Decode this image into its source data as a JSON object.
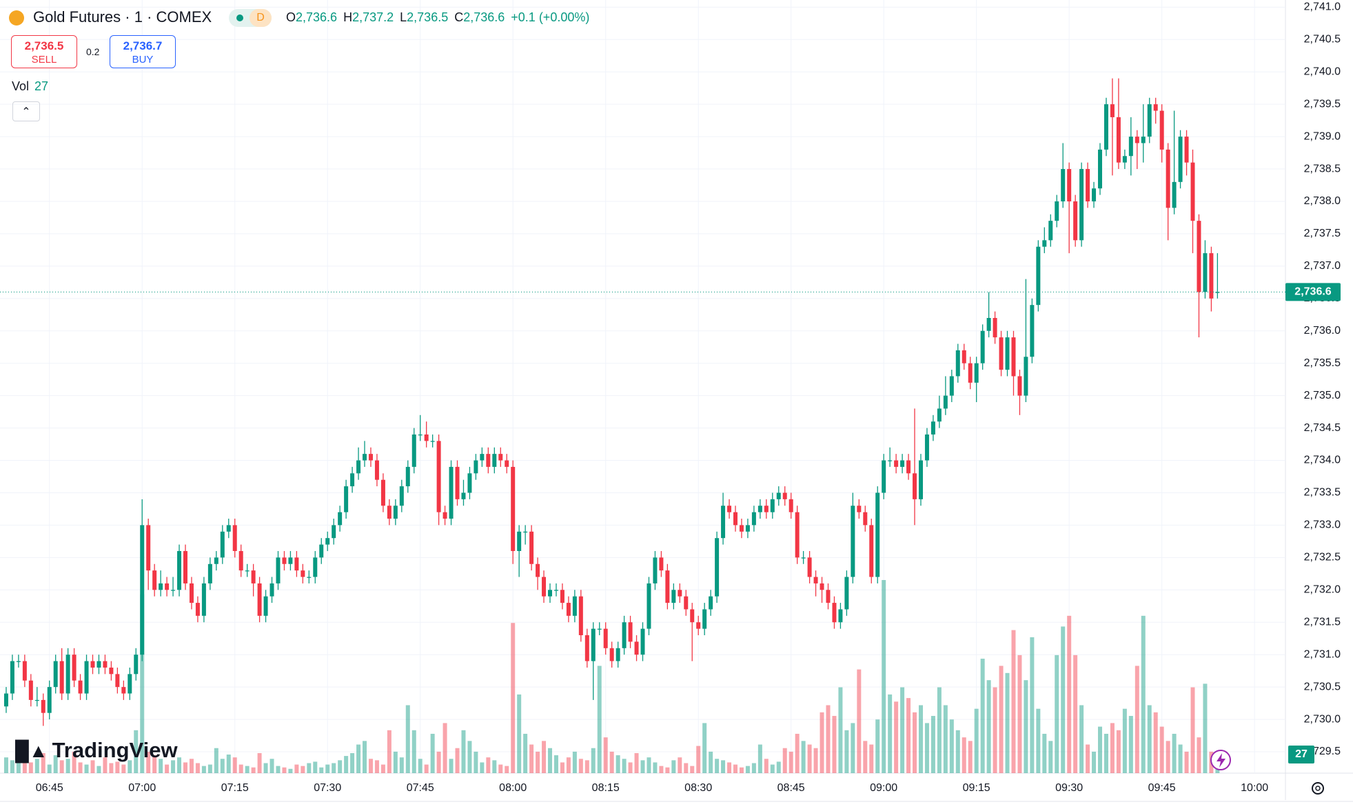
{
  "header": {
    "symbol": "Gold Futures · 1 · COMEX",
    "interval": "D",
    "ohlc": [
      {
        "label": "O",
        "value": "2,736.6"
      },
      {
        "label": "H",
        "value": "2,737.2"
      },
      {
        "label": "L",
        "value": "2,736.5"
      },
      {
        "label": "C",
        "value": "2,736.6"
      }
    ],
    "change": "+0.1 (+0.00%)",
    "sell": {
      "price": "2,736.5",
      "label": "SELL"
    },
    "spread": "0.2",
    "buy": {
      "price": "2,736.7",
      "label": "BUY"
    },
    "volume_label": "Vol",
    "logo": "TradingView"
  },
  "chart_data": {
    "type": "candlestick",
    "up_color": "#089981",
    "down_color": "#f23645",
    "grid": true,
    "xlim": [
      "06:37",
      "10:05"
    ],
    "xticks": [
      "06:45",
      "07:00",
      "07:15",
      "07:30",
      "07:45",
      "08:00",
      "08:15",
      "08:30",
      "08:45",
      "09:00",
      "09:15",
      "09:30",
      "09:45",
      "10:00"
    ],
    "ylim": [
      2729.17,
      2741.11
    ],
    "yticks": [
      {
        "value": 2729.5,
        "label": "2,729.5"
      },
      {
        "value": 2730.0,
        "label": "2,730.0"
      },
      {
        "value": 2730.5,
        "label": "2,730.5"
      },
      {
        "value": 2731.0,
        "label": "2,731.0"
      },
      {
        "value": 2731.5,
        "label": "2,731.5"
      },
      {
        "value": 2732.0,
        "label": "2,732.0"
      },
      {
        "value": 2732.5,
        "label": "2,732.5"
      },
      {
        "value": 2733.0,
        "label": "2,733.0"
      },
      {
        "value": 2733.5,
        "label": "2,733.5"
      },
      {
        "value": 2734.0,
        "label": "2,734.0"
      },
      {
        "value": 2734.5,
        "label": "2,734.5"
      },
      {
        "value": 2735.0,
        "label": "2,735.0"
      },
      {
        "value": 2735.5,
        "label": "2,735.5"
      },
      {
        "value": 2736.0,
        "label": "2,736.0"
      },
      {
        "value": 2736.5,
        "label": "2,736.5"
      },
      {
        "value": 2737.0,
        "label": "2,737.0"
      },
      {
        "value": 2737.5,
        "label": "2,737.5"
      },
      {
        "value": 2738.0,
        "label": "2,738.0"
      },
      {
        "value": 2738.5,
        "label": "2,738.5"
      },
      {
        "value": 2739.0,
        "label": "2,739.0"
      },
      {
        "value": 2739.5,
        "label": "2,739.5"
      },
      {
        "value": 2740.0,
        "label": "2,740.0"
      },
      {
        "value": 2740.5,
        "label": "2,740.5"
      },
      {
        "value": 2741.0,
        "label": "2,741.0"
      }
    ],
    "x": [
      "06:38",
      "06:39",
      "06:40",
      "06:41",
      "06:42",
      "06:43",
      "06:44",
      "06:45",
      "06:46",
      "06:47",
      "06:48",
      "06:49",
      "06:50",
      "06:51",
      "06:52",
      "06:53",
      "06:54",
      "06:55",
      "06:56",
      "06:57",
      "06:58",
      "06:59",
      "07:00",
      "07:01",
      "07:02",
      "07:03",
      "07:04",
      "07:05",
      "07:06",
      "07:07",
      "07:08",
      "07:09",
      "07:10",
      "07:11",
      "07:12",
      "07:13",
      "07:14",
      "07:15",
      "07:16",
      "07:17",
      "07:18",
      "07:19",
      "07:20",
      "07:21",
      "07:22",
      "07:23",
      "07:24",
      "07:25",
      "07:26",
      "07:27",
      "07:28",
      "07:29",
      "07:30",
      "07:31",
      "07:32",
      "07:33",
      "07:34",
      "07:35",
      "07:36",
      "07:37",
      "07:38",
      "07:39",
      "07:40",
      "07:41",
      "07:42",
      "07:43",
      "07:44",
      "07:45",
      "07:46",
      "07:47",
      "07:48",
      "07:49",
      "07:50",
      "07:51",
      "07:52",
      "07:53",
      "07:54",
      "07:55",
      "07:56",
      "07:57",
      "07:58",
      "07:59",
      "08:00",
      "08:01",
      "08:02",
      "08:03",
      "08:04",
      "08:05",
      "08:06",
      "08:07",
      "08:08",
      "08:09",
      "08:10",
      "08:11",
      "08:12",
      "08:13",
      "08:14",
      "08:15",
      "08:16",
      "08:17",
      "08:18",
      "08:19",
      "08:20",
      "08:21",
      "08:22",
      "08:23",
      "08:24",
      "08:25",
      "08:26",
      "08:27",
      "08:28",
      "08:29",
      "08:30",
      "08:31",
      "08:32",
      "08:33",
      "08:34",
      "08:35",
      "08:36",
      "08:37",
      "08:38",
      "08:39",
      "08:40",
      "08:41",
      "08:42",
      "08:43",
      "08:44",
      "08:45",
      "08:46",
      "08:47",
      "08:48",
      "08:49",
      "08:50",
      "08:51",
      "08:52",
      "08:53",
      "08:54",
      "08:55",
      "08:56",
      "08:57",
      "08:58",
      "08:59",
      "09:00",
      "09:01",
      "09:02",
      "09:03",
      "09:04",
      "09:05",
      "09:06",
      "09:07",
      "09:08",
      "09:09",
      "09:10",
      "09:11",
      "09:12",
      "09:13",
      "09:14",
      "09:15",
      "09:16",
      "09:17",
      "09:18",
      "09:19",
      "09:20",
      "09:21",
      "09:22",
      "09:23",
      "09:24",
      "09:25",
      "09:26",
      "09:27",
      "09:28",
      "09:29",
      "09:30",
      "09:31",
      "09:32",
      "09:33",
      "09:34",
      "09:35",
      "09:36",
      "09:37",
      "09:38",
      "09:39",
      "09:40",
      "09:41",
      "09:42",
      "09:43",
      "09:44",
      "09:45",
      "09:46",
      "09:47",
      "09:48",
      "09:49",
      "09:50",
      "09:51",
      "09:52",
      "09:53",
      "09:54"
    ],
    "open": [
      2730.2,
      2730.4,
      2730.9,
      2730.9,
      2730.6,
      2730.3,
      2730.3,
      2730.1,
      2730.5,
      2730.9,
      2730.4,
      2731.0,
      2730.6,
      2730.4,
      2730.9,
      2730.8,
      2730.9,
      2730.8,
      2730.7,
      2730.5,
      2730.4,
      2730.7,
      2731.0,
      2733.0,
      2732.3,
      2732.0,
      2732.1,
      2732.0,
      2732.0,
      2732.6,
      2732.1,
      2731.8,
      2731.6,
      2732.1,
      2732.4,
      2732.5,
      2732.9,
      2733.0,
      2732.6,
      2732.3,
      2732.3,
      2732.1,
      2731.6,
      2731.9,
      2732.1,
      2732.5,
      2732.4,
      2732.5,
      2732.3,
      2732.2,
      2732.2,
      2732.5,
      2732.7,
      2732.8,
      2733.0,
      2733.2,
      2733.6,
      2733.8,
      2734.0,
      2734.1,
      2734.0,
      2733.7,
      2733.3,
      2733.1,
      2733.3,
      2733.6,
      2733.9,
      2734.4,
      2734.4,
      2734.3,
      2734.3,
      2733.2,
      2733.1,
      2733.9,
      2733.4,
      2733.5,
      2733.8,
      2734.0,
      2734.1,
      2733.9,
      2734.1,
      2734.0,
      2733.9,
      2732.6,
      2732.9,
      2732.9,
      2732.4,
      2732.2,
      2731.9,
      2732.0,
      2732.0,
      2731.8,
      2731.6,
      2731.9,
      2731.3,
      2730.9,
      2731.4,
      2731.4,
      2731.1,
      2730.9,
      2731.1,
      2731.5,
      2731.2,
      2731.0,
      2731.4,
      2732.1,
      2732.5,
      2732.3,
      2731.8,
      2732.0,
      2731.9,
      2731.7,
      2731.5,
      2731.4,
      2731.7,
      2731.9,
      2732.8,
      2733.3,
      2733.2,
      2733.0,
      2732.9,
      2733.0,
      2733.2,
      2733.3,
      2733.2,
      2733.4,
      2733.5,
      2733.4,
      2733.2,
      2732.5,
      2732.5,
      2732.2,
      2732.1,
      2732.0,
      2731.8,
      2731.5,
      2731.7,
      2732.2,
      2733.3,
      2733.2,
      2733.0,
      2732.2,
      2733.5,
      2734.0,
      2734.0,
      2733.9,
      2734.0,
      2733.8,
      2733.4,
      2734.0,
      2734.4,
      2734.6,
      2734.8,
      2735.0,
      2735.3,
      2735.7,
      2735.5,
      2735.2,
      2735.5,
      2736.0,
      2736.2,
      2735.9,
      2735.4,
      2735.9,
      2735.3,
      2735.0,
      2735.6,
      2736.4,
      2737.3,
      2737.4,
      2737.7,
      2738.0,
      2738.5,
      2738.0,
      2737.4,
      2738.5,
      2738.0,
      2738.2,
      2738.8,
      2739.5,
      2739.3,
      2738.6,
      2738.7,
      2739.0,
      2738.9,
      2739.0,
      2739.5,
      2739.4,
      2738.8,
      2737.9,
      2738.3,
      2739.0,
      2738.6,
      2737.7,
      2736.6,
      2737.2,
      2736.6
    ],
    "high": [
      2730.5,
      2731.0,
      2731.0,
      2731.0,
      2730.7,
      2730.5,
      2730.4,
      2730.6,
      2731.0,
      2731.1,
      2731.1,
      2731.1,
      2730.7,
      2731.0,
      2731.0,
      2731.0,
      2731.0,
      2730.9,
      2730.8,
      2730.6,
      2730.8,
      2731.1,
      2733.4,
      2733.1,
      2732.4,
      2732.3,
      2732.2,
      2732.2,
      2732.7,
      2732.7,
      2732.2,
      2731.9,
      2732.2,
      2732.5,
      2732.6,
      2733.0,
      2733.1,
      2733.1,
      2732.7,
      2732.4,
      2732.4,
      2732.2,
      2732.0,
      2732.2,
      2732.6,
      2732.6,
      2732.6,
      2732.6,
      2732.4,
      2732.3,
      2732.6,
      2732.8,
      2732.9,
      2733.1,
      2733.3,
      2733.7,
      2733.9,
      2734.2,
      2734.3,
      2734.2,
      2734.1,
      2733.8,
      2733.4,
      2733.4,
      2733.7,
      2734.0,
      2734.5,
      2734.7,
      2734.6,
      2734.4,
      2734.4,
      2733.3,
      2734.0,
      2734.0,
      2733.7,
      2733.9,
      2734.1,
      2734.2,
      2734.2,
      2734.2,
      2734.2,
      2734.1,
      2734.0,
      2733.0,
      2733.0,
      2733.0,
      2732.5,
      2732.3,
      2732.1,
      2732.1,
      2732.1,
      2731.9,
      2732.0,
      2732.0,
      2731.4,
      2731.5,
      2731.5,
      2731.5,
      2731.2,
      2731.2,
      2731.6,
      2731.6,
      2731.3,
      2731.5,
      2732.2,
      2732.6,
      2732.6,
      2732.4,
      2732.1,
      2732.1,
      2732.0,
      2731.8,
      2731.6,
      2731.8,
      2732.0,
      2732.9,
      2733.5,
      2733.4,
      2733.3,
      2733.1,
      2733.1,
      2733.3,
      2733.4,
      2733.4,
      2733.5,
      2733.6,
      2733.6,
      2733.5,
      2733.3,
      2732.6,
      2732.6,
      2732.3,
      2732.2,
      2732.1,
      2731.9,
      2731.8,
      2732.3,
      2733.5,
      2733.4,
      2733.3,
      2733.1,
      2733.6,
      2734.1,
      2734.2,
      2734.1,
      2734.1,
      2734.1,
      2734.8,
      2734.1,
      2734.5,
      2734.7,
      2735.0,
      2735.3,
      2735.4,
      2735.8,
      2735.8,
      2735.6,
      2735.6,
      2736.1,
      2736.6,
      2736.3,
      2736.0,
      2736.0,
      2736.0,
      2735.4,
      2736.8,
      2736.5,
      2737.4,
      2737.6,
      2737.8,
      2738.1,
      2738.9,
      2738.6,
      2738.1,
      2738.6,
      2738.6,
      2738.3,
      2738.9,
      2739.6,
      2739.9,
      2739.9,
      2738.8,
      2739.3,
      2739.1,
      2739.5,
      2739.6,
      2739.6,
      2739.5,
      2738.9,
      2739.4,
      2739.1,
      2739.1,
      2738.8,
      2737.8,
      2737.4,
      2737.3,
      2737.2
    ],
    "low": [
      2730.1,
      2730.3,
      2730.8,
      2730.5,
      2730.2,
      2730.2,
      2729.9,
      2730.0,
      2730.4,
      2730.3,
      2730.3,
      2730.5,
      2730.3,
      2730.3,
      2730.7,
      2730.7,
      2730.7,
      2730.6,
      2730.4,
      2730.3,
      2730.3,
      2730.6,
      2730.9,
      2732.0,
      2731.9,
      2731.9,
      2731.9,
      2731.9,
      2731.9,
      2732.0,
      2731.7,
      2731.5,
      2731.5,
      2732.0,
      2732.3,
      2732.4,
      2732.8,
      2732.5,
      2732.2,
      2732.2,
      2731.9,
      2731.5,
      2731.5,
      2731.8,
      2732.0,
      2732.3,
      2732.3,
      2732.2,
      2732.1,
      2732.1,
      2732.1,
      2732.4,
      2732.6,
      2732.7,
      2732.9,
      2733.1,
      2733.5,
      2733.7,
      2733.9,
      2733.9,
      2733.6,
      2733.2,
      2733.0,
      2733.0,
      2733.2,
      2733.5,
      2733.8,
      2734.3,
      2734.2,
      2734.2,
      2733.0,
      2733.0,
      2733.0,
      2733.3,
      2733.3,
      2733.4,
      2733.7,
      2733.9,
      2733.8,
      2733.8,
      2733.9,
      2733.8,
      2732.4,
      2732.2,
      2732.7,
      2732.3,
      2732.0,
      2731.8,
      2731.8,
      2731.9,
      2731.7,
      2731.5,
      2731.5,
      2731.2,
      2730.8,
      2730.3,
      2731.3,
      2731.0,
      2730.8,
      2730.8,
      2731.0,
      2731.1,
      2730.9,
      2730.9,
      2731.3,
      2732.0,
      2732.2,
      2731.7,
      2731.7,
      2731.8,
      2731.6,
      2730.9,
      2731.3,
      2731.3,
      2731.6,
      2731.8,
      2732.7,
      2733.1,
      2732.9,
      2732.8,
      2732.8,
      2732.9,
      2733.1,
      2733.1,
      2733.1,
      2733.3,
      2733.3,
      2733.1,
      2732.4,
      2732.4,
      2732.1,
      2731.9,
      2731.8,
      2731.7,
      2731.4,
      2731.4,
      2731.6,
      2732.1,
      2733.1,
      2732.9,
      2732.1,
      2732.1,
      2733.4,
      2733.9,
      2733.8,
      2733.8,
      2733.7,
      2733.0,
      2733.3,
      2733.9,
      2734.3,
      2734.5,
      2734.7,
      2734.9,
      2735.2,
      2735.4,
      2735.1,
      2734.9,
      2735.4,
      2735.9,
      2735.8,
      2735.3,
      2735.3,
      2735.0,
      2734.7,
      2734.9,
      2735.5,
      2736.3,
      2737.2,
      2737.3,
      2737.6,
      2737.9,
      2737.2,
      2737.3,
      2737.3,
      2737.9,
      2737.9,
      2738.1,
      2738.7,
      2738.4,
      2738.5,
      2738.5,
      2738.4,
      2738.5,
      2738.6,
      2738.9,
      2739.2,
      2738.6,
      2737.4,
      2737.8,
      2738.2,
      2738.4,
      2737.2,
      2735.9,
      2736.5,
      2736.3,
      2736.5
    ],
    "close": [
      2730.4,
      2730.9,
      2730.9,
      2730.6,
      2730.3,
      2730.3,
      2730.1,
      2730.5,
      2730.9,
      2730.4,
      2731.0,
      2730.6,
      2730.4,
      2730.9,
      2730.8,
      2730.9,
      2730.8,
      2730.7,
      2730.5,
      2730.4,
      2730.7,
      2731.0,
      2733.0,
      2732.3,
      2732.0,
      2732.1,
      2732.0,
      2732.0,
      2732.6,
      2732.1,
      2731.8,
      2731.6,
      2732.1,
      2732.4,
      2732.5,
      2732.9,
      2733.0,
      2732.6,
      2732.3,
      2732.3,
      2732.1,
      2731.6,
      2731.9,
      2732.1,
      2732.5,
      2732.4,
      2732.5,
      2732.3,
      2732.2,
      2732.2,
      2732.5,
      2732.7,
      2732.8,
      2733.0,
      2733.2,
      2733.6,
      2733.8,
      2734.0,
      2734.1,
      2734.0,
      2733.7,
      2733.3,
      2733.1,
      2733.3,
      2733.6,
      2733.9,
      2734.4,
      2734.4,
      2734.3,
      2734.3,
      2733.2,
      2733.1,
      2733.9,
      2733.4,
      2733.5,
      2733.8,
      2734.0,
      2734.1,
      2733.9,
      2734.1,
      2734.0,
      2733.9,
      2732.6,
      2732.9,
      2732.9,
      2732.4,
      2732.2,
      2731.9,
      2732.0,
      2732.0,
      2731.8,
      2731.6,
      2731.9,
      2731.3,
      2730.9,
      2731.4,
      2731.4,
      2731.1,
      2730.9,
      2731.1,
      2731.5,
      2731.2,
      2731.0,
      2731.4,
      2732.1,
      2732.5,
      2732.3,
      2731.8,
      2732.0,
      2731.9,
      2731.7,
      2731.5,
      2731.4,
      2731.7,
      2731.9,
      2732.8,
      2733.3,
      2733.2,
      2733.0,
      2732.9,
      2733.0,
      2733.2,
      2733.3,
      2733.2,
      2733.4,
      2733.5,
      2733.4,
      2733.2,
      2732.5,
      2732.5,
      2732.2,
      2732.1,
      2732.0,
      2731.8,
      2731.5,
      2731.7,
      2732.2,
      2733.3,
      2733.2,
      2733.0,
      2732.2,
      2733.5,
      2734.0,
      2734.0,
      2733.9,
      2734.0,
      2733.8,
      2733.4,
      2734.0,
      2734.4,
      2734.6,
      2734.8,
      2735.0,
      2735.3,
      2735.7,
      2735.5,
      2735.2,
      2735.5,
      2736.0,
      2736.2,
      2735.9,
      2735.4,
      2735.9,
      2735.3,
      2735.0,
      2735.6,
      2736.4,
      2737.3,
      2737.4,
      2737.7,
      2738.0,
      2738.5,
      2738.0,
      2737.4,
      2738.5,
      2738.0,
      2738.2,
      2738.8,
      2739.5,
      2739.3,
      2738.6,
      2738.7,
      2739.0,
      2738.9,
      2739.0,
      2739.5,
      2739.4,
      2738.8,
      2737.9,
      2738.3,
      2739.0,
      2738.6,
      2737.7,
      2736.6,
      2737.2,
      2736.5,
      2736.6
    ],
    "volume": [
      22,
      18,
      25,
      30,
      15,
      20,
      28,
      12,
      25,
      18,
      20,
      30,
      15,
      12,
      18,
      10,
      22,
      14,
      16,
      12,
      18,
      60,
      250,
      30,
      25,
      20,
      12,
      18,
      22,
      15,
      20,
      14,
      10,
      12,
      35,
      20,
      26,
      22,
      12,
      10,
      8,
      28,
      14,
      20,
      10,
      8,
      6,
      12,
      10,
      14,
      16,
      8,
      12,
      14,
      18,
      24,
      28,
      40,
      45,
      20,
      18,
      12,
      60,
      30,
      22,
      95,
      60,
      20,
      12,
      55,
      30,
      70,
      20,
      35,
      60,
      45,
      30,
      15,
      22,
      18,
      12,
      10,
      210,
      110,
      55,
      40,
      30,
      45,
      35,
      25,
      15,
      22,
      30,
      20,
      18,
      35,
      150,
      50,
      30,
      25,
      20,
      15,
      28,
      18,
      22,
      15,
      10,
      8,
      18,
      22,
      14,
      10,
      38,
      70,
      30,
      20,
      18,
      15,
      12,
      8,
      10,
      14,
      40,
      20,
      12,
      16,
      35,
      30,
      55,
      45,
      40,
      35,
      85,
      95,
      80,
      120,
      60,
      70,
      145,
      45,
      40,
      75,
      270,
      110,
      100,
      120,
      105,
      85,
      95,
      70,
      80,
      120,
      95,
      75,
      60,
      50,
      45,
      90,
      160,
      130,
      120,
      150,
      140,
      200,
      165,
      130,
      190,
      90,
      55,
      45,
      165,
      205,
      220,
      165,
      95,
      40,
      30,
      65,
      55,
      70,
      60,
      90,
      80,
      150,
      220,
      95,
      85,
      65,
      45,
      55,
      40,
      30,
      120,
      50,
      125,
      30,
      27
    ]
  }
}
